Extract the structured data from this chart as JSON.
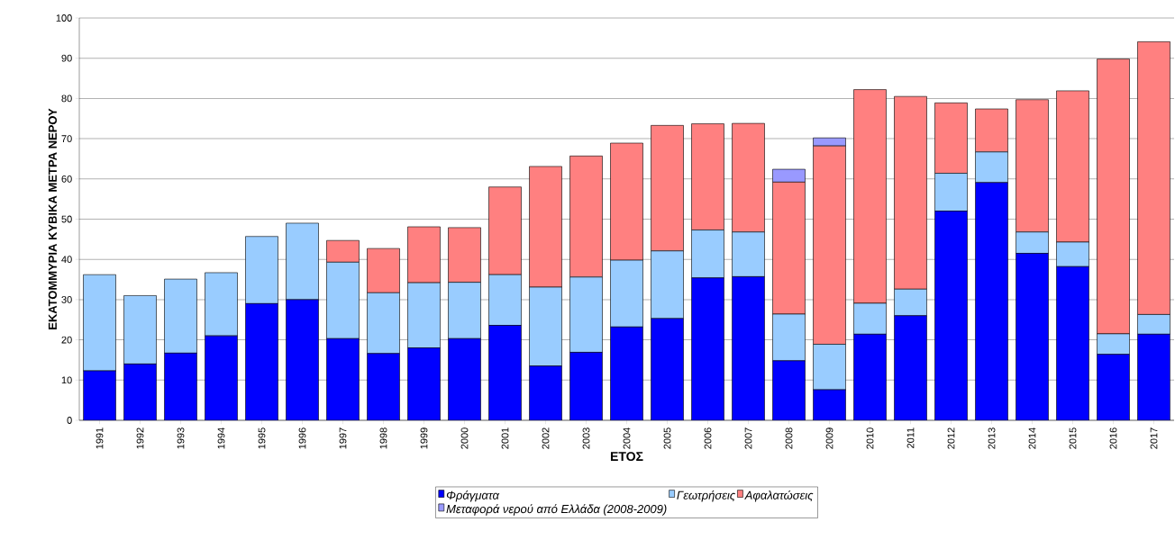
{
  "chart_data": {
    "type": "bar",
    "stacked": true,
    "xlabel": "ΕΤΟΣ",
    "ylabel": "ΕΚΑΤΟΜΜΥΡΙΑ ΚΥΒΙΚΑ ΜΕΤΡΑ ΝΕΡΟΥ",
    "categories": [
      "1991",
      "1992",
      "1993",
      "1994",
      "1995",
      "1996",
      "1997",
      "1998",
      "1999",
      "2000",
      "2001",
      "2002",
      "2003",
      "2004",
      "2005",
      "2006",
      "2007",
      "2008",
      "2009",
      "2010",
      "2011",
      "2012",
      "2013",
      "2014",
      "2015",
      "2016",
      "2017"
    ],
    "series": [
      {
        "name": "Φράγματα",
        "color": "#0000ff",
        "values": [
          12.3,
          14,
          16.7,
          21,
          29,
          30,
          20.3,
          16.6,
          18,
          20.3,
          23.6,
          13.5,
          16.9,
          23.2,
          25.3,
          35.4,
          35.7,
          14.8,
          7.6,
          21.4,
          26,
          52,
          59.1,
          41.5,
          38.2,
          16.4,
          21.4
        ]
      },
      {
        "name": "Γεωτρήσεις",
        "color": "#99ccff",
        "values": [
          23.9,
          17,
          18.4,
          15.7,
          16.7,
          19,
          19,
          15.1,
          16.2,
          14,
          12.6,
          19.6,
          18.7,
          16.6,
          16.8,
          11.9,
          11.1,
          11.6,
          11.3,
          7.7,
          6.6,
          9.4,
          7.6,
          5.3,
          6.1,
          5.1,
          4.9
        ]
      },
      {
        "name": "Αφαλατώσεις",
        "color": "#ff8080",
        "values": [
          null,
          null,
          null,
          null,
          null,
          null,
          5.4,
          11,
          13.9,
          13.6,
          21.8,
          30,
          30.1,
          29.1,
          31.2,
          26.4,
          27,
          32.8,
          49.3,
          53.1,
          47.9,
          17.5,
          10.7,
          32.9,
          37.6,
          68.3,
          67.8
        ]
      },
      {
        "name": "Μεταφορά νερού από Ελλάδα (2008-2009)",
        "color": "#9999ff",
        "values": [
          null,
          null,
          null,
          null,
          null,
          null,
          null,
          null,
          null,
          null,
          null,
          null,
          null,
          null,
          null,
          null,
          null,
          3.2,
          2,
          null,
          null,
          null,
          null,
          null,
          null,
          null,
          null
        ]
      }
    ],
    "ylim": [
      0,
      100
    ],
    "yticks": [
      0,
      10,
      20,
      30,
      40,
      50,
      60,
      70,
      80,
      90,
      100
    ],
    "grid": "y",
    "legend": "bottom"
  }
}
